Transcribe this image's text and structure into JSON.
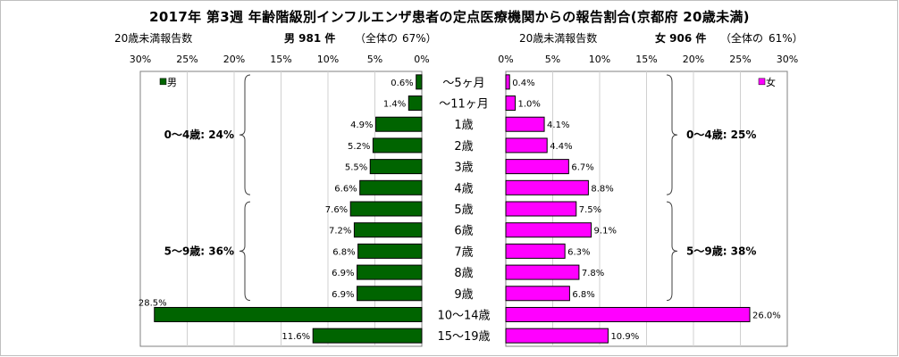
{
  "title": "2017年 第3週 年齢階級別インフルエンザ患者の定点医療機関からの報告割合(京都府 20歳未満)",
  "left_header": {
    "axis_title": "20歳未満報告数",
    "total_label": "男 981 件",
    "share_prefix": "（全体の",
    "share_value": "67%）"
  },
  "right_header": {
    "axis_title": "20歳未満報告数",
    "total_label": "女 906 件",
    "share_prefix": "（全体の",
    "share_value": "61%）"
  },
  "chart_data": {
    "type": "bar",
    "orientation": "horizontal-pyramid",
    "categories": [
      "〜5ヶ月",
      "〜11ヶ月",
      "1歳",
      "2歳",
      "3歳",
      "4歳",
      "5歳",
      "6歳",
      "7歳",
      "8歳",
      "9歳",
      "10〜14歳",
      "15〜19歳"
    ],
    "series": [
      {
        "name": "男",
        "color": "#006400",
        "values": [
          0.6,
          1.4,
          4.9,
          5.2,
          5.5,
          6.6,
          7.6,
          7.2,
          6.8,
          6.9,
          6.9,
          28.5,
          11.6
        ],
        "labels": [
          "0.6%",
          "1.4%",
          "4.9%",
          "5.2%",
          "5.5%",
          "6.6%",
          "7.6%",
          "7.2%",
          "6.8%",
          "6.9%",
          "6.9%",
          "28.5%",
          "11.6%"
        ]
      },
      {
        "name": "女",
        "color": "#ff00ff",
        "values": [
          0.4,
          1.0,
          4.1,
          4.4,
          6.7,
          8.8,
          7.5,
          9.1,
          6.3,
          7.8,
          6.8,
          26.0,
          10.9
        ],
        "labels": [
          "0.4%",
          "1.0%",
          "4.1%",
          "4.4%",
          "6.7%",
          "8.8%",
          "7.5%",
          "9.1%",
          "6.3%",
          "7.8%",
          "6.8%",
          "26.0%",
          "10.9%"
        ]
      }
    ],
    "xlim": [
      0,
      30
    ],
    "left_ticks": [
      "30%",
      "25%",
      "20%",
      "15%",
      "10%",
      "5%",
      "0%"
    ],
    "right_ticks": [
      "0%",
      "5%",
      "10%",
      "15%",
      "20%",
      "25%",
      "30%"
    ],
    "legend": {
      "left": "男",
      "right": "女"
    },
    "groups": {
      "left": [
        {
          "label": "0〜4歳: 24%",
          "from": 0,
          "to": 5
        },
        {
          "label": "5〜9歳: 36%",
          "from": 6,
          "to": 10
        }
      ],
      "right": [
        {
          "label": "0〜4歳: 25%",
          "from": 0,
          "to": 5
        },
        {
          "label": "5〜9歳: 38%",
          "from": 6,
          "to": 10
        }
      ]
    }
  }
}
